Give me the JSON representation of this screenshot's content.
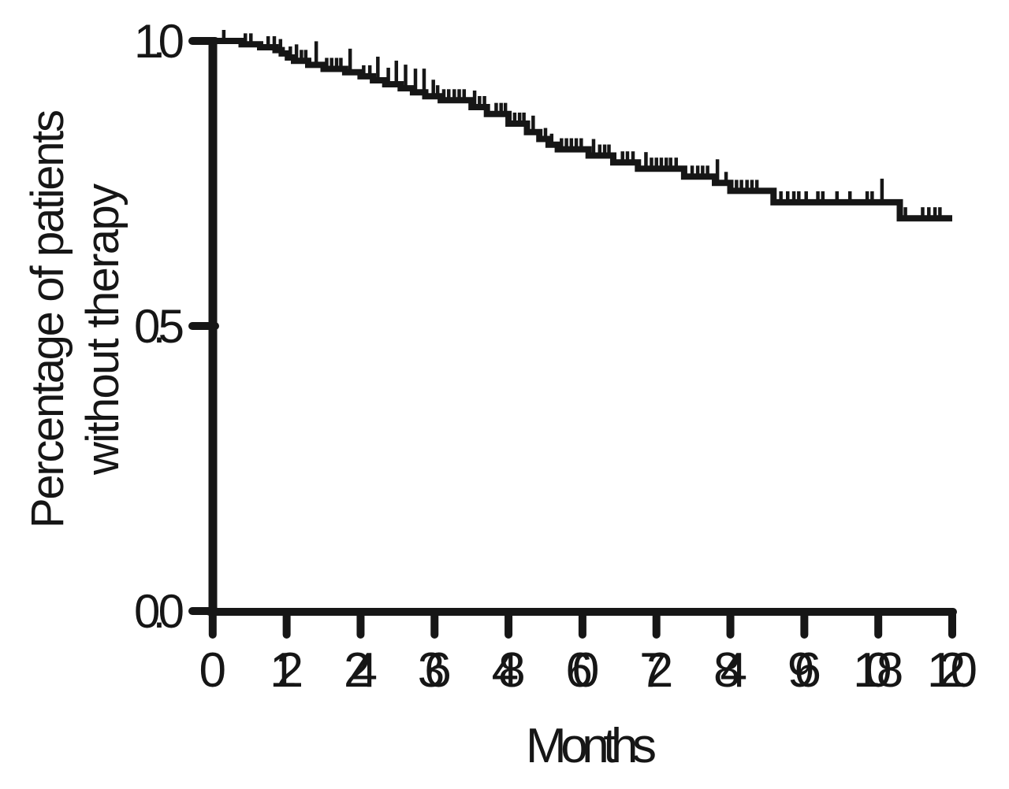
{
  "figure": {
    "y_axis_title_line1": "Percentage of patients",
    "y_axis_title_line2": "without therapy",
    "x_axis_title": "Months"
  },
  "chart_data": {
    "type": "line",
    "subtype": "kaplan_meier_step_curve",
    "title": "",
    "xlabel": "Months",
    "ylabel": "Percentage of patients without therapy",
    "xlim": [
      0,
      120
    ],
    "ylim": [
      0.0,
      1.0
    ],
    "x_ticks": [
      0,
      12,
      24,
      36,
      48,
      60,
      72,
      84,
      96,
      108,
      120
    ],
    "x_tick_labels": [
      "0",
      "12",
      "24",
      "36",
      "48",
      "60",
      "72",
      "84",
      "96",
      "108",
      "120"
    ],
    "y_ticks": [
      1.0,
      0.5,
      0.0
    ],
    "y_tick_labels": [
      "1.0",
      "0.5",
      "0.0"
    ],
    "grid": false,
    "legend_position": "none",
    "line_color": "#161616",
    "background_color": "#ffffff",
    "series": [
      {
        "name": "patients without therapy",
        "steps": [
          [
            0,
            1.0
          ],
          [
            4.7,
            0.994
          ],
          [
            7.7,
            0.989
          ],
          [
            10.2,
            0.984
          ],
          [
            11.2,
            0.978
          ],
          [
            12.2,
            0.971
          ],
          [
            13.2,
            0.965
          ],
          [
            15.5,
            0.958
          ],
          [
            18,
            0.951
          ],
          [
            21.5,
            0.945
          ],
          [
            24,
            0.938
          ],
          [
            26,
            0.931
          ],
          [
            28,
            0.924
          ],
          [
            30.5,
            0.917
          ],
          [
            32.5,
            0.91
          ],
          [
            34.5,
            0.903
          ],
          [
            37,
            0.896
          ],
          [
            42,
            0.884
          ],
          [
            44.5,
            0.872
          ],
          [
            48,
            0.855
          ],
          [
            51,
            0.84
          ],
          [
            53,
            0.828
          ],
          [
            54.5,
            0.818
          ],
          [
            56,
            0.81
          ],
          [
            61,
            0.799
          ],
          [
            65,
            0.787
          ],
          [
            69,
            0.776
          ],
          [
            76.5,
            0.762
          ],
          [
            81.5,
            0.751
          ],
          [
            84,
            0.737
          ],
          [
            91,
            0.717
          ],
          [
            111.5,
            0.689
          ]
        ],
        "end_x": 120,
        "censor_marks": [
          [
            1.8,
            1
          ],
          [
            5.3,
            1
          ],
          [
            6.2,
            1
          ],
          [
            9.0,
            1
          ],
          [
            10.0,
            1
          ],
          [
            11.0,
            1
          ],
          [
            12.6,
            1
          ],
          [
            13.6,
            2
          ],
          [
            14.4,
            1
          ],
          [
            15.1,
            1
          ],
          [
            16.8,
            3
          ],
          [
            18.5,
            1
          ],
          [
            19.3,
            1
          ],
          [
            20.1,
            1
          ],
          [
            20.8,
            1
          ],
          [
            22.3,
            3
          ],
          [
            24.5,
            1
          ],
          [
            25.5,
            1
          ],
          [
            26.8,
            3
          ],
          [
            28.5,
            2
          ],
          [
            29.8,
            3
          ],
          [
            31.3,
            3
          ],
          [
            32.9,
            3
          ],
          [
            34.3,
            3
          ],
          [
            35.8,
            2
          ],
          [
            36.5,
            1
          ],
          [
            37.5,
            1
          ],
          [
            38.3,
            1
          ],
          [
            39.2,
            1
          ],
          [
            40.0,
            1
          ],
          [
            40.8,
            1
          ],
          [
            42.5,
            2
          ],
          [
            43.3,
            1
          ],
          [
            44.1,
            1
          ],
          [
            46.0,
            1
          ],
          [
            46.8,
            1
          ],
          [
            47.5,
            1
          ],
          [
            49.0,
            1
          ],
          [
            49.8,
            1
          ],
          [
            50.5,
            1
          ],
          [
            52.0,
            2
          ],
          [
            54.0,
            1
          ],
          [
            55.0,
            1
          ],
          [
            56.6,
            1
          ],
          [
            57.4,
            1
          ],
          [
            58.2,
            1
          ],
          [
            59.0,
            1
          ],
          [
            59.8,
            1
          ],
          [
            61.8,
            2
          ],
          [
            62.8,
            1
          ],
          [
            63.6,
            1
          ],
          [
            64.3,
            1
          ],
          [
            66.5,
            1
          ],
          [
            67.3,
            1
          ],
          [
            68.2,
            1
          ],
          [
            70.3,
            2
          ],
          [
            71.2,
            1
          ],
          [
            72.0,
            1
          ],
          [
            72.8,
            1
          ],
          [
            73.6,
            1
          ],
          [
            74.3,
            1
          ],
          [
            75.2,
            1
          ],
          [
            77.8,
            1
          ],
          [
            78.7,
            1
          ],
          [
            79.5,
            1
          ],
          [
            80.3,
            1
          ],
          [
            81.9,
            3
          ],
          [
            83.3,
            1
          ],
          [
            85.0,
            1
          ],
          [
            85.8,
            1
          ],
          [
            86.7,
            1
          ],
          [
            87.5,
            1
          ],
          [
            88.3,
            1
          ],
          [
            92.2,
            1
          ],
          [
            93.3,
            1
          ],
          [
            94.3,
            1
          ],
          [
            95.1,
            1
          ],
          [
            96.3,
            1
          ],
          [
            98.2,
            1
          ],
          [
            99.0,
            1
          ],
          [
            101.3,
            1
          ],
          [
            103.4,
            1
          ],
          [
            106.2,
            1
          ],
          [
            107.0,
            1
          ],
          [
            108.6,
            3
          ],
          [
            112.4,
            1
          ],
          [
            115.2,
            1
          ],
          [
            116.2,
            1
          ],
          [
            117.2,
            1
          ],
          [
            118.0,
            1
          ]
        ]
      }
    ]
  }
}
